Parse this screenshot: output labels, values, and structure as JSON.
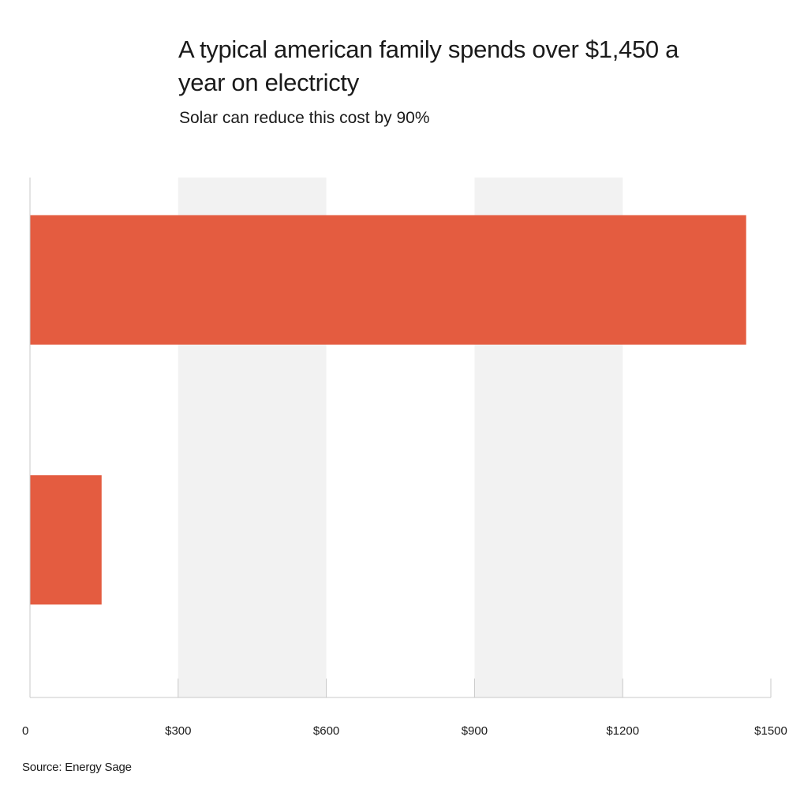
{
  "chart_data": {
    "type": "bar",
    "orientation": "horizontal",
    "title": "A typical american family spends over $1,450 a year on electricty",
    "subtitle": "Solar can reduce this cost by 90%",
    "categories": [
      "",
      ""
    ],
    "values": [
      1450,
      145
    ],
    "xlim": [
      0,
      1500
    ],
    "xticks": [
      0,
      300,
      600,
      900,
      1200,
      1500
    ],
    "xtick_labels": [
      "0",
      "$300",
      "$600",
      "$900",
      "$1200",
      "$1500"
    ],
    "xlabel": "",
    "ylabel": "",
    "grid": "alternating vertical bands",
    "legend": "none",
    "source": "Source: Energy Sage"
  },
  "colors": {
    "bar": "#e45c40",
    "band": "#f2f2f2",
    "axis": "#c8c8c8",
    "text": "#1a1a1a"
  }
}
